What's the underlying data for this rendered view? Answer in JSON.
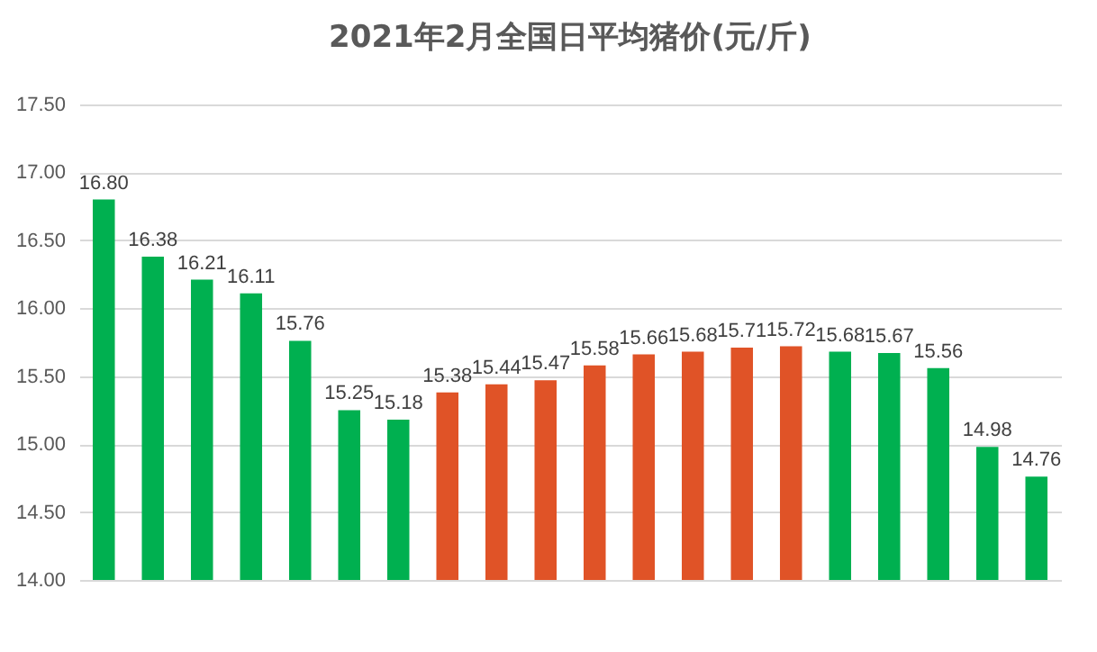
{
  "chart_data": {
    "type": "bar",
    "title": "2021年2月全国日平均猪价(元/斤)",
    "categories": [
      null,
      null,
      null,
      null,
      null,
      null,
      null,
      null,
      null,
      null,
      null,
      null,
      null,
      null,
      null,
      null,
      null,
      null,
      null,
      null
    ],
    "values": [
      16.8,
      16.38,
      16.21,
      16.11,
      15.76,
      15.25,
      15.18,
      15.38,
      15.44,
      15.47,
      15.58,
      15.66,
      15.68,
      15.71,
      15.72,
      15.68,
      15.67,
      15.56,
      14.98,
      14.76
    ],
    "value_labels": [
      "16.80",
      "16.38",
      "16.21",
      "16.11",
      "15.76",
      "15.25",
      "15.18",
      "15.38",
      "15.44",
      "15.47",
      "15.58",
      "15.66",
      "15.68",
      "15.71",
      "15.72",
      "15.68",
      "15.67",
      "15.56",
      "14.98",
      "14.76"
    ],
    "colors": [
      "#00b050",
      "#00b050",
      "#00b050",
      "#00b050",
      "#00b050",
      "#00b050",
      "#00b050",
      "#e05327",
      "#e05327",
      "#e05327",
      "#e05327",
      "#e05327",
      "#e05327",
      "#e05327",
      "#e05327",
      "#00b050",
      "#00b050",
      "#00b050",
      "#00b050",
      "#00b050"
    ],
    "ylim": [
      14,
      17.5
    ],
    "yticks": [
      {
        "value": 14,
        "label": "14.00"
      },
      {
        "value": 14.5,
        "label": "14.50"
      },
      {
        "value": 15,
        "label": "15.00"
      },
      {
        "value": 15.5,
        "label": "15.50"
      },
      {
        "value": 16,
        "label": "16.00"
      },
      {
        "value": 16.5,
        "label": "16.50"
      },
      {
        "value": 17,
        "label": "17.00"
      },
      {
        "value": 17.5,
        "label": "17.50"
      }
    ],
    "grid": "y"
  }
}
